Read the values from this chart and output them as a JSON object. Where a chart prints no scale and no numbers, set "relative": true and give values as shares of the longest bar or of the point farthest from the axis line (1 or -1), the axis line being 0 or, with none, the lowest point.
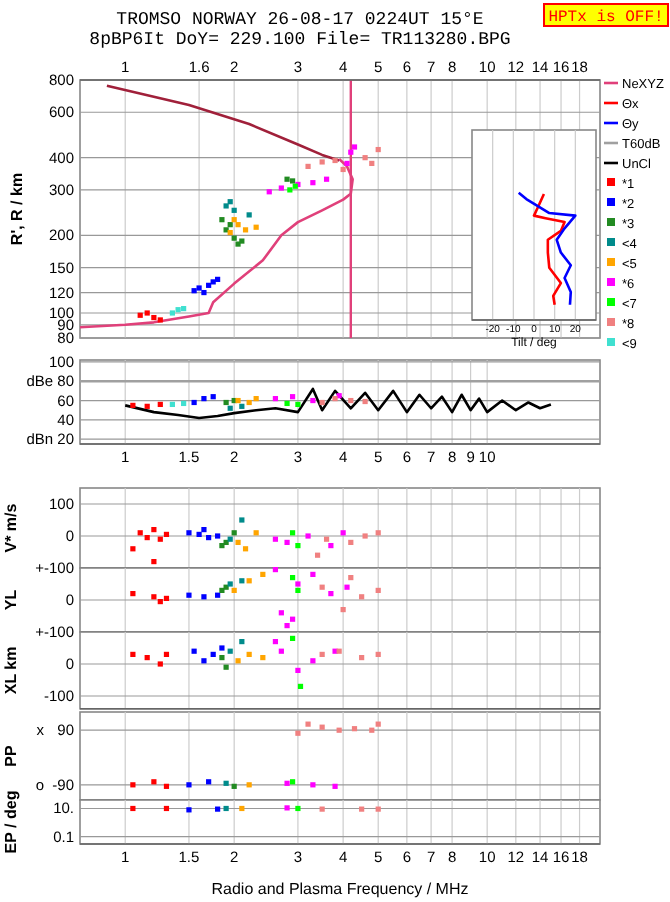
{
  "chart_data": [
    {
      "type": "scatter",
      "title": "TROMSO NORWAY   26-08-17 0224UT 15°E",
      "subtitle": "8pBP6It DoY= 229.100 File= TR113280.BPG",
      "ylabel": "R', R / km",
      "annotations": [
        "HPTx is OFF!"
      ],
      "log": "xy",
      "xlim": [
        0.75,
        20.5
      ],
      "ylim": [
        80,
        800
      ],
      "xticks": [
        1,
        1.6,
        2,
        3,
        4,
        5,
        6,
        7,
        8,
        10,
        12,
        14,
        16,
        18
      ],
      "yticks": [
        80,
        90,
        100,
        120,
        150,
        200,
        300,
        400,
        600,
        800
      ],
      "grid": true,
      "legend": "right",
      "ref_lines": [
        {
          "axis": "x",
          "value": 4.2,
          "color": "#e0407a"
        }
      ],
      "series": [
        {
          "type": "line",
          "color": "#a0203a",
          "x": [
            0.89,
            1.5,
            2.2,
            3.0,
            3.5,
            3.9
          ],
          "values": [
            760,
            640,
            540,
            450,
            410,
            390
          ]
        },
        {
          "type": "line",
          "name": "NeXYZ",
          "color": "#e0407a",
          "x": [
            0.75,
            1.0,
            1.2,
            1.5,
            1.7,
            1.75,
            2.0,
            2.4,
            2.7,
            3.0,
            3.5,
            4.0,
            4.2,
            4.25,
            4.1,
            3.9
          ],
          "values": [
            88,
            90,
            92,
            97,
            100,
            110,
            130,
            160,
            200,
            225,
            250,
            275,
            290,
            330,
            370,
            395
          ]
        },
        {
          "name": "*1",
          "color": "#ff0000",
          "x": [
            1.1,
            1.15,
            1.2,
            1.25
          ],
          "values": [
            98,
            100,
            96,
            94
          ]
        },
        {
          "name": "*2",
          "color": "#0000ff",
          "x": [
            1.55,
            1.6,
            1.65,
            1.7,
            1.75,
            1.8
          ],
          "values": [
            122,
            125,
            120,
            128,
            132,
            135
          ]
        },
        {
          "name": "*3",
          "color": "#228b22",
          "x": [
            1.85,
            1.9,
            1.95,
            2.0,
            2.05,
            2.1,
            2.8,
            2.9
          ],
          "values": [
            230,
            210,
            220,
            195,
            185,
            190,
            330,
            325
          ]
        },
        {
          "name": "<4",
          "color": "#008b8b",
          "x": [
            1.9,
            1.95,
            2.0,
            2.2
          ],
          "values": [
            260,
            270,
            250,
            240
          ]
        },
        {
          "name": "<5",
          "color": "#ffa500",
          "x": [
            1.95,
            2.0,
            2.05,
            2.15,
            2.3
          ],
          "values": [
            205,
            230,
            220,
            210,
            215
          ]
        },
        {
          "name": "*6",
          "color": "#ff00ff",
          "x": [
            2.5,
            2.7,
            3.0,
            3.3,
            3.6,
            4.1,
            4.2,
            4.3
          ],
          "values": [
            295,
            305,
            315,
            320,
            330,
            380,
            420,
            440
          ]
        },
        {
          "name": "<7",
          "color": "#00ff00",
          "x": [
            2.85,
            2.95
          ],
          "values": [
            300,
            310
          ]
        },
        {
          "name": "*8",
          "color": "#f08080",
          "x": [
            3.2,
            3.5,
            3.8,
            4.0,
            4.6,
            4.8,
            5.0
          ],
          "values": [
            370,
            385,
            390,
            360,
            400,
            380,
            430
          ]
        },
        {
          "name": "<9",
          "color": "#40e0d0",
          "x": [
            1.35,
            1.4,
            1.45
          ],
          "values": [
            100,
            103,
            104
          ]
        }
      ]
    },
    {
      "type": "line",
      "xlabel": "Tilt / deg",
      "relative": true,
      "xlim": [
        -30,
        30
      ],
      "xticks": [
        -20,
        -10,
        0,
        10,
        20
      ],
      "grid": "x",
      "legend": "right",
      "series": [
        {
          "name": "Θx",
          "color": "#ff0000",
          "x": [
            4.8,
            2,
            0,
            5.6,
            14.8,
            13,
            6.7,
            6.7,
            7.4,
            13,
            9.3,
            10
          ],
          "values": [
            0.99,
            0.89,
            0.82,
            0.8,
            0.77,
            0.7,
            0.63,
            0.53,
            0.41,
            0.29,
            0.19,
            0.12
          ]
        },
        {
          "name": "Θy",
          "color": "#0000ff",
          "x": [
            -7.4,
            -3.7,
            7.4,
            20,
            14.8,
            11,
            13,
            17.8,
            14.8,
            17.8,
            17.4
          ],
          "values": [
            1,
            0.95,
            0.84,
            0.82,
            0.72,
            0.63,
            0.53,
            0.43,
            0.33,
            0.22,
            0.12
          ]
        }
      ]
    },
    {
      "type": "scatter",
      "log": "x",
      "xlim": [
        0.75,
        20.5
      ],
      "ylim": [
        15,
        102
      ],
      "xticks": [
        1,
        1.5,
        2,
        3,
        4,
        5,
        6,
        7,
        8,
        9,
        10
      ],
      "yticks": [
        100,
        {
          "value": 80,
          "label": "dBe 80"
        },
        60,
        40,
        {
          "value": 20,
          "label": "dBn 20"
        }
      ],
      "grid": true,
      "legend": "right",
      "series": [
        {
          "type": "line",
          "name": "T60dB",
          "color": "#a0a0a0",
          "x": [
            0.75,
            20.5
          ],
          "values": [
            80,
            80
          ]
        },
        {
          "type": "line",
          "name": "UnCl",
          "color": "#000000",
          "x": [
            1.0,
            1.2,
            1.4,
            1.6,
            1.8,
            2.0,
            2.3,
            2.6,
            3.0,
            3.3,
            3.5,
            3.8,
            4.2,
            4.6,
            5.0,
            5.5,
            6.0,
            6.5,
            7.0,
            7.5,
            8.0,
            8.5,
            9.0,
            9.5,
            10,
            11,
            12,
            13,
            14,
            15
          ],
          "values": [
            55,
            48,
            45,
            42,
            44,
            47,
            50,
            52,
            48,
            72,
            50,
            70,
            52,
            68,
            50,
            70,
            48,
            66,
            52,
            64,
            48,
            66,
            50,
            62,
            48,
            60,
            50,
            58,
            52,
            56
          ]
        },
        {
          "color": "#ff0000",
          "x": [
            1.05,
            1.15,
            1.25
          ],
          "values": [
            55,
            54,
            56
          ]
        },
        {
          "color": "#40e0d0",
          "x": [
            1.35,
            1.45
          ],
          "values": [
            56,
            57
          ]
        },
        {
          "color": "#0000ff",
          "x": [
            1.55,
            1.65,
            1.75
          ],
          "values": [
            58,
            62,
            64
          ]
        },
        {
          "color": "#228b22",
          "x": [
            1.9,
            2.0
          ],
          "values": [
            58,
            60
          ]
        },
        {
          "color": "#008b8b",
          "x": [
            1.95,
            2.1
          ],
          "values": [
            52,
            54
          ]
        },
        {
          "color": "#ffa500",
          "x": [
            2.05,
            2.2,
            2.3
          ],
          "values": [
            60,
            58,
            62
          ]
        },
        {
          "color": "#ff00ff",
          "x": [
            2.6,
            2.9,
            3.3,
            3.9
          ],
          "values": [
            62,
            64,
            60,
            65
          ]
        },
        {
          "color": "#00ff00",
          "x": [
            2.8,
            3.0
          ],
          "values": [
            57,
            56
          ]
        },
        {
          "color": "#f08080",
          "x": [
            3.5,
            3.8,
            4.2,
            4.6
          ],
          "values": [
            58,
            62,
            60,
            59
          ]
        }
      ]
    },
    {
      "type": "scatter",
      "ylabel": "V* m/s",
      "log": "x",
      "xlim": [
        0.75,
        20.5
      ],
      "ylim": [
        -100,
        150
      ],
      "xticks": [
        1,
        1.5,
        2,
        3,
        4,
        5,
        6,
        7,
        8,
        10,
        12,
        14,
        16,
        18
      ],
      "yticks": [
        100,
        0,
        {
          "value": -100,
          "label": "+-100"
        }
      ],
      "tick_labels": "y",
      "grid": true,
      "series": [
        {
          "color": "#ff0000",
          "x": [
            1.05,
            1.1,
            1.15,
            1.2,
            1.25,
            1.3,
            1.2
          ],
          "values": [
            -40,
            10,
            -5,
            20,
            -10,
            5,
            -80
          ]
        },
        {
          "color": "#0000ff",
          "x": [
            1.5,
            1.6,
            1.65,
            1.7,
            1.8
          ],
          "values": [
            10,
            5,
            20,
            -5,
            0
          ]
        },
        {
          "color": "#228b22",
          "x": [
            1.9,
            2.0,
            1.85
          ],
          "values": [
            -20,
            10,
            -30
          ]
        },
        {
          "color": "#008b8b",
          "x": [
            1.95,
            2.1
          ],
          "values": [
            -10,
            50
          ]
        },
        {
          "color": "#ffa500",
          "x": [
            2.05,
            2.15,
            2.3
          ],
          "values": [
            -20,
            -40,
            10
          ]
        },
        {
          "color": "#ff00ff",
          "x": [
            2.6,
            2.8,
            3.2,
            3.7,
            4.0
          ],
          "values": [
            -10,
            -20,
            0,
            -30,
            10
          ]
        },
        {
          "color": "#00ff00",
          "x": [
            2.9,
            3.0
          ],
          "values": [
            10,
            -30
          ]
        },
        {
          "color": "#f08080",
          "x": [
            3.4,
            3.6,
            4.2,
            4.6,
            5.0
          ],
          "values": [
            -60,
            -10,
            -20,
            0,
            10
          ]
        }
      ]
    },
    {
      "type": "scatter",
      "ylabel": "YL",
      "log": "x",
      "xlim": [
        0.75,
        20.5
      ],
      "ylim": [
        -100,
        100
      ],
      "xticks": [
        1,
        1.5,
        2,
        3,
        4,
        5,
        6,
        7,
        8,
        10,
        12,
        14,
        16,
        18
      ],
      "yticks": [
        0,
        {
          "value": -100,
          "label": "+-100"
        }
      ],
      "tick_labels": "y",
      "grid": true,
      "series": [
        {
          "color": "#ff0000",
          "x": [
            1.05,
            1.2,
            1.25,
            1.3
          ],
          "values": [
            20,
            10,
            -5,
            5
          ]
        },
        {
          "color": "#0000ff",
          "x": [
            1.5,
            1.65,
            1.8
          ],
          "values": [
            15,
            10,
            15
          ]
        },
        {
          "color": "#228b22",
          "x": [
            1.85,
            1.9
          ],
          "values": [
            30,
            40
          ]
        },
        {
          "color": "#008b8b",
          "x": [
            1.95,
            2.1
          ],
          "values": [
            50,
            60
          ]
        },
        {
          "color": "#ffa500",
          "x": [
            2.0,
            2.2,
            2.4
          ],
          "values": [
            30,
            60,
            80
          ]
        },
        {
          "color": "#ff00ff",
          "x": [
            2.6,
            2.7,
            3.0,
            3.3,
            3.7,
            4.1,
            2.8,
            2.9
          ],
          "values": [
            95,
            -40,
            50,
            80,
            20,
            40,
            -80,
            -60
          ]
        },
        {
          "color": "#00ff00",
          "x": [
            2.9,
            3.0
          ],
          "values": [
            70,
            30
          ]
        },
        {
          "color": "#f08080",
          "x": [
            3.5,
            4.0,
            4.2,
            4.5,
            5.0
          ],
          "values": [
            40,
            -30,
            70,
            10,
            30
          ]
        }
      ]
    },
    {
      "type": "scatter",
      "ylabel": "XL km",
      "log": "x",
      "xlim": [
        0.75,
        20.5
      ],
      "ylim": [
        -140,
        100
      ],
      "xticks": [
        1,
        1.5,
        2,
        3,
        4,
        5,
        6,
        7,
        8,
        10,
        12,
        14,
        16,
        18
      ],
      "yticks": [
        0,
        -100
      ],
      "tick_labels": "y",
      "grid": true,
      "series": [
        {
          "color": "#ff0000",
          "x": [
            1.05,
            1.15,
            1.25,
            1.3
          ],
          "values": [
            30,
            20,
            0,
            30
          ]
        },
        {
          "color": "#0000ff",
          "x": [
            1.55,
            1.65,
            1.75,
            1.85
          ],
          "values": [
            40,
            10,
            30,
            50
          ]
        },
        {
          "color": "#228b22",
          "x": [
            1.9,
            1.85
          ],
          "values": [
            -10,
            20
          ]
        },
        {
          "color": "#008b8b",
          "x": [
            1.95,
            2.1
          ],
          "values": [
            40,
            70
          ]
        },
        {
          "color": "#ffa500",
          "x": [
            2.05,
            2.2,
            2.4
          ],
          "values": [
            10,
            30,
            20
          ]
        },
        {
          "color": "#ff00ff",
          "x": [
            2.6,
            2.7,
            3.0,
            3.3,
            3.8
          ],
          "values": [
            70,
            40,
            -20,
            10,
            40
          ]
        },
        {
          "color": "#00ff00",
          "x": [
            2.9,
            3.05
          ],
          "values": [
            80,
            -70
          ]
        },
        {
          "color": "#f08080",
          "x": [
            3.5,
            3.9,
            4.5,
            5.0
          ],
          "values": [
            30,
            40,
            20,
            30
          ]
        }
      ]
    },
    {
      "type": "scatter",
      "ylabel": "PP",
      "annotations": [
        "x",
        "o"
      ],
      "log": "x",
      "xlim": [
        0.75,
        20.5
      ],
      "ylim": [
        -140,
        150
      ],
      "xticks": [
        1,
        1.5,
        2,
        3,
        4,
        5,
        6,
        7,
        8,
        10,
        12,
        14,
        16,
        18
      ],
      "yticks": [
        90,
        -90
      ],
      "tick_labels": "y",
      "grid": true,
      "series": [
        {
          "color": "#ff0000",
          "x": [
            1.05,
            1.2,
            1.3
          ],
          "values": [
            -90,
            -80,
            -95
          ]
        },
        {
          "color": "#0000ff",
          "x": [
            1.5,
            1.7
          ],
          "values": [
            -90,
            -80
          ]
        },
        {
          "color": "#228b22",
          "x": [
            2.0
          ],
          "values": [
            -95
          ]
        },
        {
          "color": "#008b8b",
          "x": [
            1.9
          ],
          "values": [
            -85
          ]
        },
        {
          "color": "#ffa500",
          "x": [
            2.2
          ],
          "values": [
            -90
          ]
        },
        {
          "color": "#ff00ff",
          "x": [
            2.8,
            3.3,
            3.8
          ],
          "values": [
            -85,
            -90,
            -95
          ]
        },
        {
          "color": "#00ff00",
          "x": [
            2.9
          ],
          "values": [
            -80
          ]
        },
        {
          "color": "#f08080",
          "x": [
            3.0,
            3.2,
            3.5,
            3.9,
            4.3,
            4.8,
            5.0
          ],
          "values": [
            80,
            110,
            100,
            90,
            95,
            90,
            110
          ]
        }
      ]
    },
    {
      "type": "scatter",
      "ylabel": "EP / deg",
      "xlabel": "Radio and Plasma Frequency / MHz",
      "log": "xy",
      "xlim": [
        0.75,
        20.5
      ],
      "ylim": [
        0.03,
        40
      ],
      "xticks": [
        1,
        1.5,
        2,
        3,
        4,
        5,
        6,
        7,
        8,
        10,
        12,
        14,
        16,
        18
      ],
      "yticks": [
        {
          "value": 10,
          "label": "10."
        },
        0.1
      ],
      "grid": true,
      "series": [
        {
          "color": "#ff0000",
          "x": [
            1.05,
            1.3
          ],
          "values": [
            10,
            10
          ]
        },
        {
          "color": "#0000ff",
          "x": [
            1.5,
            1.8
          ],
          "values": [
            8,
            9
          ]
        },
        {
          "color": "#008b8b",
          "x": [
            1.9
          ],
          "values": [
            10
          ]
        },
        {
          "color": "#ffa500",
          "x": [
            2.1
          ],
          "values": [
            10
          ]
        },
        {
          "color": "#ff00ff",
          "x": [
            2.8
          ],
          "values": [
            11
          ]
        },
        {
          "color": "#00ff00",
          "x": [
            3.0
          ],
          "values": [
            10
          ]
        },
        {
          "color": "#f08080",
          "x": [
            3.5,
            4.5,
            5.0
          ],
          "values": [
            9,
            9,
            9
          ]
        }
      ]
    }
  ]
}
